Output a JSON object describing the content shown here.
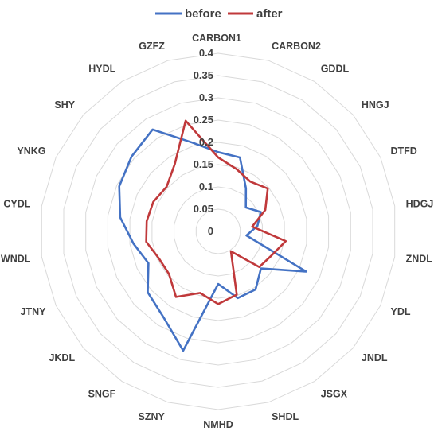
{
  "chart_data": {
    "type": "radar",
    "categories": [
      "CARBON1",
      "CARBON2",
      "GDDL",
      "HNGJ",
      "DTFD",
      "HDGJ",
      "ZNDL",
      "YDL",
      "JNDL",
      "JSGX",
      "SHDL",
      "NMHD",
      "SZNY",
      "SNGF",
      "JKDL",
      "JTNY",
      "WNDL",
      "CYDL",
      "YNKG",
      "SHY",
      "HYDL",
      "GZFZ"
    ],
    "rlim": [
      0,
      0.4
    ],
    "ticks": [
      "0",
      "0.05",
      "0.1",
      "0.15",
      "0.2",
      "0.25",
      "0.3",
      "0.35",
      "0.4"
    ],
    "grid": true,
    "legend_position": "top",
    "series": [
      {
        "name": "before",
        "color": "#4472C4",
        "values": [
          0.178,
          0.173,
          0.115,
          0.082,
          0.105,
          0.089,
          0.064,
          0.217,
          0.127,
          0.155,
          0.156,
          0.118,
          0.279,
          0.228,
          0.209,
          0.172,
          0.192,
          0.222,
          0.244,
          0.257,
          0.272,
          0.208
        ]
      },
      {
        "name": "after",
        "color": "#C0393B",
        "values": [
          0.166,
          0.146,
          0.133,
          0.147,
          0.116,
          0.077,
          0.153,
          0.131,
          0.122,
          0.053,
          0.148,
          0.163,
          0.144,
          0.175,
          0.146,
          0.146,
          0.163,
          0.162,
          0.16,
          0.153,
          0.18,
          0.259
        ]
      }
    ]
  }
}
